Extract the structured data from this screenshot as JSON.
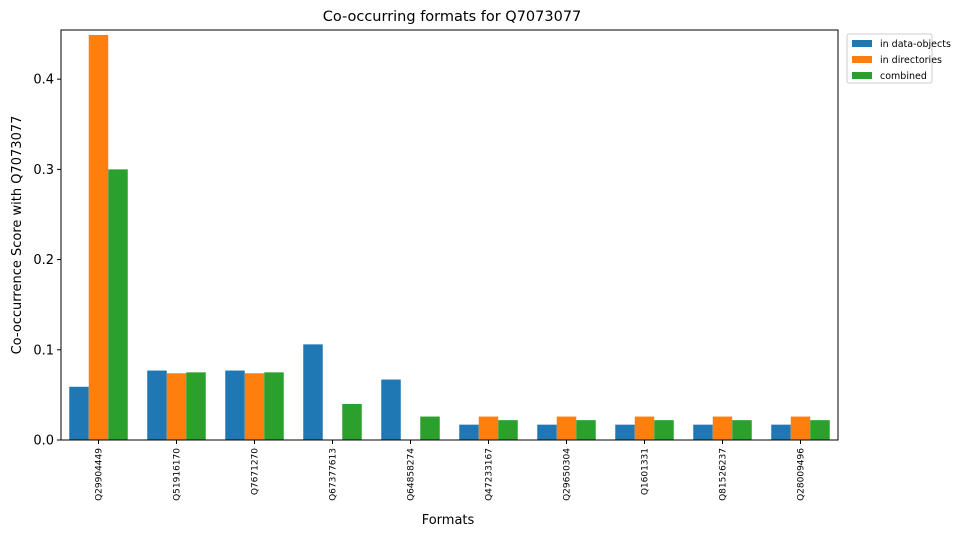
{
  "chart_data": {
    "type": "bar",
    "title": "Co-occurring formats for Q7073077",
    "xlabel": "Formats",
    "ylabel": "Co-occurrence Score with Q7073077",
    "ylim": [
      0,
      0.4545
    ],
    "yticks": [
      0.0,
      0.1,
      0.2,
      0.3,
      0.4
    ],
    "ytick_labels": [
      "0.0",
      "0.1",
      "0.2",
      "0.3",
      "0.4"
    ],
    "grid": false,
    "legend_position": "outside-top-right",
    "categories": [
      "Q29904449",
      "Q51916170",
      "Q7671270",
      "Q67377613",
      "Q64858274",
      "Q47233167",
      "Q29650304",
      "Q1601331",
      "Q81526237",
      "Q28009496"
    ],
    "series": [
      {
        "name": "in data-objects",
        "color": "#1f77b4",
        "values": [
          0.059,
          0.077,
          0.077,
          0.106,
          0.067,
          0.017,
          0.017,
          0.017,
          0.017,
          0.017
        ]
      },
      {
        "name": "in directories",
        "color": "#ff7f0e",
        "values": [
          0.449,
          0.074,
          0.074,
          0.0,
          0.0,
          0.026,
          0.026,
          0.026,
          0.026,
          0.026
        ]
      },
      {
        "name": "combined",
        "color": "#2ca02c",
        "values": [
          0.3,
          0.075,
          0.075,
          0.04,
          0.026,
          0.022,
          0.022,
          0.022,
          0.022,
          0.022
        ]
      }
    ]
  }
}
